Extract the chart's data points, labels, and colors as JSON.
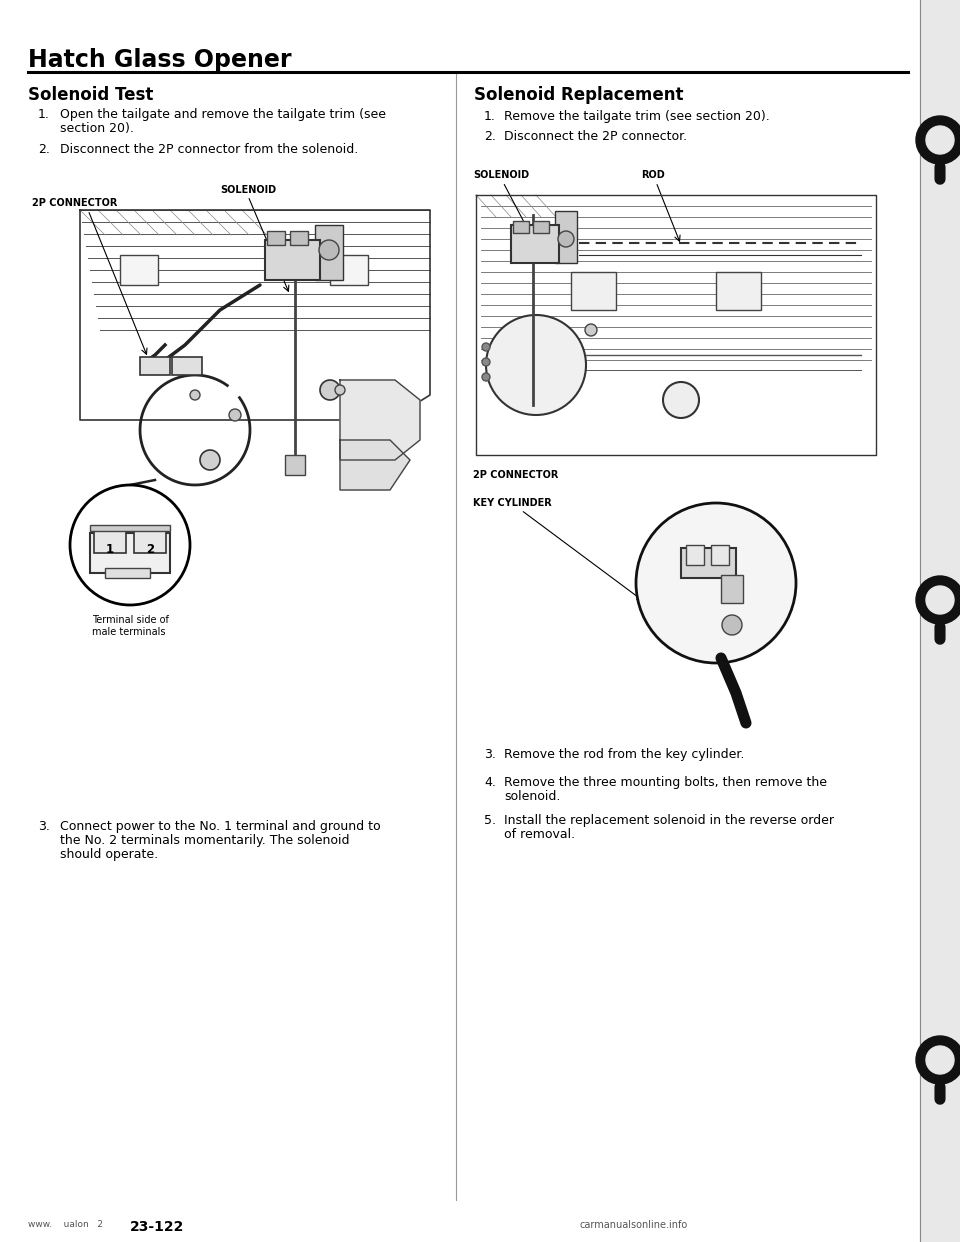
{
  "page_title": "Hatch Glass Opener",
  "bg_color": "#ffffff",
  "title_fontsize": 17,
  "section_fontsize": 12,
  "body_fontsize": 9,
  "label_fontsize": 7,
  "small_fontsize": 7,
  "left_section": {
    "heading": "Solenoid Test",
    "step1": "Open the tailgate and remove the tailgate trim (see\n     section 20).",
    "step2": "Disconnect the 2P connector from the solenoid.",
    "step3": "Connect power to the No. 1 terminal and ground to\n     the No. 2 terminals momentarily. The solenoid\n     should operate.",
    "solenoid_label": "SOLENOID",
    "connector_label": "2P CONNECTOR",
    "terminal_label": "Terminal side of\nmale terminals",
    "pin1": "1",
    "pin2": "2"
  },
  "right_section": {
    "heading": "Solenoid Replacement",
    "step1": "Remove the tailgate trim (see section 20).",
    "step2": "Disconnect the 2P connector.",
    "step3": "Remove the rod from the key cylinder.",
    "step4": "Remove the three mounting bolts, then remove the\n     solenoid.",
    "step5": "Install the replacement solenoid in the reverse order\n     of removal.",
    "solenoid_label": "SOLENOID",
    "rod_label": "ROD",
    "connector_label": "2P CONNECTOR",
    "key_cyl_label": "KEY CYLINDER"
  },
  "footer_left": "www.    ualon   2",
  "footer_page": "23-122",
  "footer_right": "carmanualsonline.info"
}
